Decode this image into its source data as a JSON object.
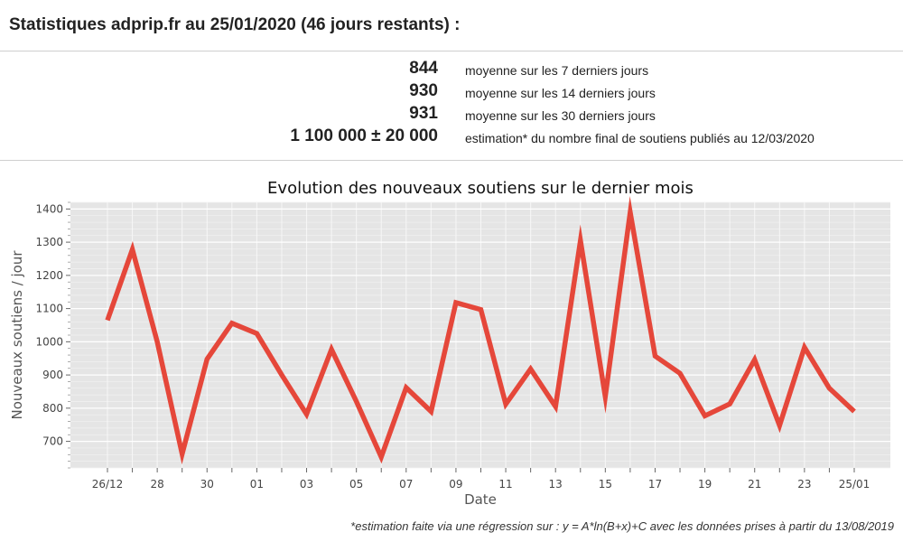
{
  "header": {
    "title": "Statistiques adprip.fr au 25/01/2020 (46 jours restants) :"
  },
  "stats": [
    {
      "value": "844",
      "label": "moyenne sur les 7 derniers jours"
    },
    {
      "value": "930",
      "label": "moyenne sur les 14 derniers jours"
    },
    {
      "value": "931",
      "label": "moyenne sur les 30 derniers jours"
    },
    {
      "value": "1 100 000 ± 20 000",
      "label": "estimation* du nombre final de soutiens publiés au 12/03/2020"
    }
  ],
  "footnote": "*estimation faite via une régression sur : y = A*ln(B+x)+C avec les données prises à partir du 13/08/2019",
  "chart_data": {
    "type": "line",
    "title": "Evolution des nouveaux soutiens sur le dernier mois",
    "xlabel": "Date",
    "ylabel": "Nouveaux soutiens / jour",
    "ylim": [
      620,
      1420
    ],
    "yticks": [
      700,
      800,
      900,
      1000,
      1100,
      1200,
      1300,
      1400
    ],
    "grid": true,
    "line_color": "#e5473a",
    "background_color": "#e5e5e5",
    "x": [
      "26/12",
      "27/12",
      "28/12",
      "29/12",
      "30/12",
      "31/12",
      "01/01",
      "02/01",
      "03/01",
      "04/01",
      "05/01",
      "06/01",
      "07/01",
      "08/01",
      "09/01",
      "10/01",
      "11/01",
      "12/01",
      "13/01",
      "14/01",
      "15/01",
      "16/01",
      "17/01",
      "18/01",
      "19/01",
      "20/01",
      "21/01",
      "22/01",
      "23/01",
      "24/01",
      "25/01"
    ],
    "xtick_labels": [
      "26/12",
      "",
      "28",
      "",
      "30",
      "",
      "01",
      "",
      "03",
      "",
      "05",
      "",
      "07",
      "",
      "09",
      "",
      "11",
      "",
      "13",
      "",
      "15",
      "",
      "17",
      "",
      "19",
      "",
      "21",
      "",
      "23",
      "",
      "25/01"
    ],
    "values": [
      1065,
      1278,
      1000,
      662,
      948,
      1056,
      1025,
      900,
      782,
      977,
      820,
      653,
      862,
      790,
      1118,
      1097,
      812,
      918,
      805,
      1305,
      835,
      1390,
      957,
      905,
      777,
      813,
      946,
      748,
      983,
      860,
      790
    ]
  }
}
